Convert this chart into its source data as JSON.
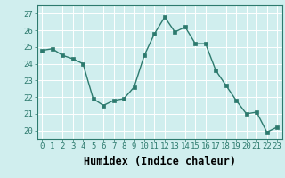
{
  "x": [
    0,
    1,
    2,
    3,
    4,
    5,
    6,
    7,
    8,
    9,
    10,
    11,
    12,
    13,
    14,
    15,
    16,
    17,
    18,
    19,
    20,
    21,
    22,
    23
  ],
  "y": [
    24.8,
    24.9,
    24.5,
    24.3,
    24.0,
    21.9,
    21.5,
    21.8,
    21.9,
    22.6,
    24.5,
    25.8,
    26.8,
    25.9,
    26.2,
    25.2,
    25.2,
    23.6,
    22.7,
    21.8,
    21.0,
    21.1,
    19.9,
    20.2
  ],
  "line_color": "#2d7a6e",
  "marker": "s",
  "marker_size": 2.2,
  "line_width": 1.0,
  "xlabel": "Humidex (Indice chaleur)",
  "xlim": [
    -0.5,
    23.5
  ],
  "ylim": [
    19.5,
    27.5
  ],
  "yticks": [
    20,
    21,
    22,
    23,
    24,
    25,
    26,
    27
  ],
  "xticks": [
    0,
    1,
    2,
    3,
    4,
    5,
    6,
    7,
    8,
    9,
    10,
    11,
    12,
    13,
    14,
    15,
    16,
    17,
    18,
    19,
    20,
    21,
    22,
    23
  ],
  "bg_color": "#d0eeee",
  "grid_major_color": "#ffffff",
  "grid_minor_color": "#e0f5f5",
  "tick_label_size": 6.5,
  "xlabel_size": 8.5
}
